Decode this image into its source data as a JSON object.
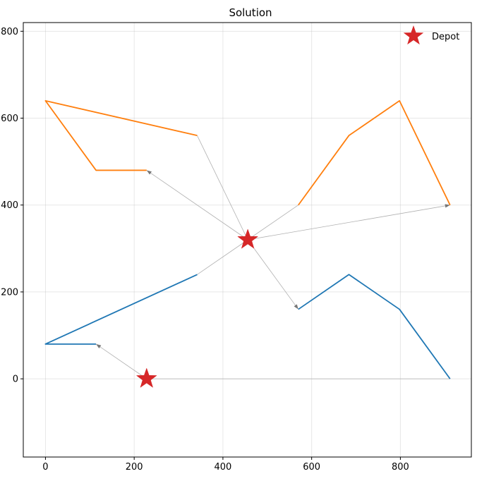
{
  "chart_data": {
    "type": "line",
    "title": "Solution",
    "xlabel": "",
    "ylabel": "",
    "xlim": [
      -50,
      960
    ],
    "ylim": [
      -180,
      820
    ],
    "x_ticks": [
      0,
      200,
      400,
      600,
      800
    ],
    "y_ticks": [
      0,
      200,
      400,
      600,
      800
    ],
    "x_tick_labels": [
      "0",
      "200",
      "400",
      "600",
      "800"
    ],
    "y_tick_labels": [
      "0",
      "200",
      "400",
      "600",
      "800"
    ],
    "grid": true,
    "legend": {
      "placement": "top-right",
      "entries": [
        {
          "label": "Depot",
          "marker": "star",
          "color": "#d62728"
        }
      ]
    },
    "depots": [
      {
        "x": 228,
        "y": 0
      },
      {
        "x": 456,
        "y": 320
      }
    ],
    "series": [
      {
        "color": "#1f77b4",
        "points": [
          [
            342,
            240
          ],
          [
            0,
            80
          ],
          [
            114,
            80
          ]
        ]
      },
      {
        "color": "#1f77b4",
        "points": [
          [
            570,
            160
          ],
          [
            684,
            240
          ],
          [
            798,
            160
          ],
          [
            912,
            0
          ]
        ]
      },
      {
        "color": "#ff7f0e",
        "points": [
          [
            228,
            480
          ],
          [
            114,
            480
          ],
          [
            0,
            640
          ],
          [
            342,
            560
          ]
        ]
      },
      {
        "color": "#ff7f0e",
        "points": [
          [
            912,
            400
          ],
          [
            798,
            640
          ],
          [
            684,
            560
          ],
          [
            570,
            400
          ]
        ]
      }
    ],
    "connectors": [
      {
        "from": [
          456,
          320
        ],
        "to": [
          570,
          160
        ],
        "arrow": true
      },
      {
        "from": [
          456,
          320
        ],
        "to": [
          228,
          480
        ],
        "arrow": true
      },
      {
        "from": [
          456,
          320
        ],
        "to": [
          912,
          400
        ],
        "arrow": true
      },
      {
        "from": [
          456,
          320
        ],
        "to": [
          342,
          560
        ],
        "arrow": false
      },
      {
        "from": [
          456,
          320
        ],
        "to": [
          570,
          400
        ],
        "arrow": false
      },
      {
        "from": [
          456,
          320
        ],
        "to": [
          342,
          240
        ],
        "arrow": false
      },
      {
        "from": [
          228,
          0
        ],
        "to": [
          114,
          80
        ],
        "arrow": true
      },
      {
        "from": [
          228,
          0
        ],
        "to": [
          912,
          0
        ],
        "arrow": false
      }
    ]
  }
}
